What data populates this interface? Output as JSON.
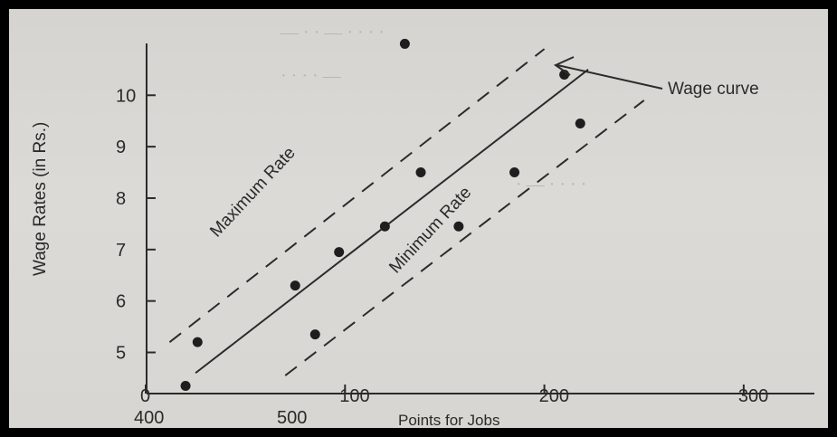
{
  "chart_data": {
    "type": "scatter",
    "title": "",
    "xlabel": "Points for Jobs",
    "ylabel": "Wage Rates (in Rs.)",
    "x_ticks": [
      "0",
      "100",
      "200",
      "300"
    ],
    "x_tick_values": [
      0,
      100,
      200,
      300
    ],
    "x_extra_labels": [
      "400",
      "500"
    ],
    "y_ticks": [
      "5",
      "6",
      "7",
      "8",
      "9",
      "10"
    ],
    "y_tick_values": [
      5,
      6,
      7,
      8,
      9,
      10
    ],
    "xlim": [
      -5,
      340
    ],
    "ylim": [
      4.2,
      11.5
    ],
    "grid": false,
    "points": [
      {
        "x": 20,
        "y": 4.35
      },
      {
        "x": 26,
        "y": 5.2
      },
      {
        "x": 75,
        "y": 6.3
      },
      {
        "x": 85,
        "y": 5.35
      },
      {
        "x": 97,
        "y": 6.95
      },
      {
        "x": 120,
        "y": 7.45
      },
      {
        "x": 130,
        "y": 11.0
      },
      {
        "x": 138,
        "y": 8.5
      },
      {
        "x": 157,
        "y": 7.45
      },
      {
        "x": 185,
        "y": 8.5
      },
      {
        "x": 210,
        "y": 10.4
      },
      {
        "x": 218,
        "y": 9.45
      }
    ],
    "lines": [
      {
        "label": "Wage curve",
        "style": "solid",
        "from": [
          25,
          4.6
        ],
        "to": [
          222,
          10.5
        ]
      },
      {
        "label": "Maximum Rate",
        "style": "dashed",
        "from": [
          12,
          5.2
        ],
        "to": [
          200,
          10.9
        ]
      },
      {
        "label": "Minimum Rate",
        "style": "dashed",
        "from": [
          70,
          4.55
        ],
        "to": [
          250,
          9.9
        ]
      }
    ],
    "annotations": {
      "wage_curve": "Wage curve",
      "max_rate": "Maximum Rate",
      "min_rate": "Minimum Rate"
    }
  }
}
